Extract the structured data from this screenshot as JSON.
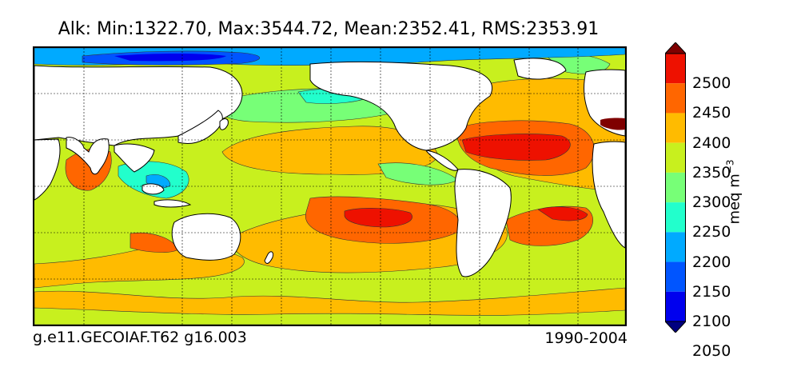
{
  "title": "Alk: Min:1322.70, Max:3544.72, Mean:2352.41, RMS:2353.91",
  "footer": {
    "run": "g.e11.GECOIAF.T62 g16.003",
    "period": "1990-2004"
  },
  "colorbar": {
    "unit": "meq m",
    "unit_exponent": "−3",
    "ticks": [
      "2500",
      "2450",
      "2400",
      "2350",
      "2300",
      "2250",
      "2200",
      "2150",
      "2100",
      "2050"
    ],
    "colors": [
      "#7f0000",
      "#ee1100",
      "#ff6600",
      "#ffbb00",
      "#c8f01e",
      "#77ff77",
      "#22ffcc",
      "#00aaff",
      "#0055ff",
      "#0000ee",
      "#00007f"
    ]
  },
  "palette": {
    "land": "#ffffff",
    "ocean_base": "#c8f01e",
    "c2050": "#0000ee",
    "c2150": "#00aaff",
    "c2200": "#22ffcc",
    "c2250": "#77ff77",
    "c2300": "#c8f01e",
    "c2350": "#ffbb00",
    "c2400": "#ff6600",
    "c2450": "#ee1100",
    "c2500": "#7f0000"
  }
}
